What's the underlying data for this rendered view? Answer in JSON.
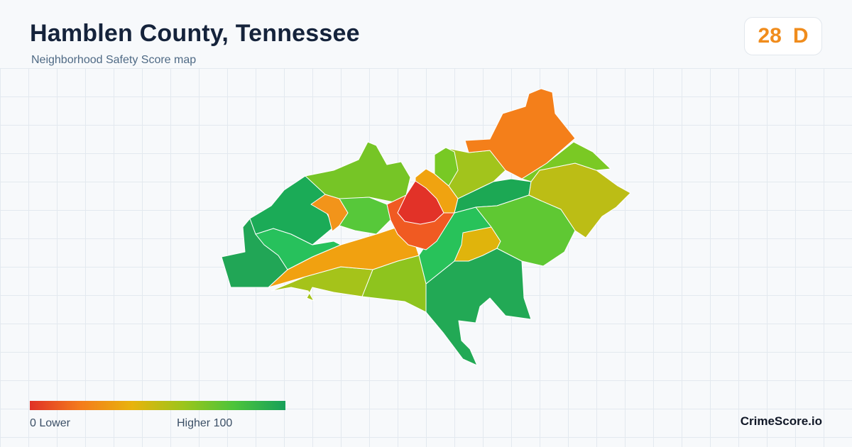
{
  "header": {
    "title": "Hamblen County, Tennessee",
    "subtitle": "Neighborhood Safety Score map"
  },
  "score": {
    "value": "28",
    "grade": "D",
    "color": "#f08c1c"
  },
  "legend": {
    "low_label": "0  Lower",
    "high_label": "Higher  100",
    "gradient_colors": [
      "#e03127",
      "#f47c1c",
      "#e8b30c",
      "#9cc51b",
      "#4cc43b",
      "#17a05a"
    ]
  },
  "brand": "CrimeScore.io",
  "map": {
    "regions": [
      {
        "name": "northeast-orange",
        "color": "#f47f1a"
      },
      {
        "name": "east-yellowgreen",
        "color": "#bcbd15"
      },
      {
        "name": "east-upper-green",
        "color": "#7ac924"
      },
      {
        "name": "north-green",
        "color": "#76c526"
      },
      {
        "name": "north-center-green",
        "color": "#78c924"
      },
      {
        "name": "north-small-green",
        "color": "#a2c41c"
      },
      {
        "name": "northwest-darkgreen",
        "color": "#1bab57"
      },
      {
        "name": "west-darkgreen",
        "color": "#21a656"
      },
      {
        "name": "west-mid-green",
        "color": "#27c15c"
      },
      {
        "name": "west-orange-pocket",
        "color": "#f2941a"
      },
      {
        "name": "center-green",
        "color": "#57c83a"
      },
      {
        "name": "downtown-red",
        "color": "#e23228"
      },
      {
        "name": "downtown-orange",
        "color": "#f05a22"
      },
      {
        "name": "center-yellow",
        "color": "#f0a310"
      },
      {
        "name": "east-mid-darkgreen",
        "color": "#1ca854"
      },
      {
        "name": "east-center-green",
        "color": "#5fc833"
      },
      {
        "name": "center-east-yellow",
        "color": "#e0b40c"
      },
      {
        "name": "southwest-band-orange",
        "color": "#f1a110"
      },
      {
        "name": "south-yellowgreen",
        "color": "#a5c31a"
      },
      {
        "name": "south-green",
        "color": "#8ec41e"
      },
      {
        "name": "south-darkgreen",
        "color": "#22a955"
      },
      {
        "name": "southeast-green",
        "color": "#28c25a"
      }
    ]
  }
}
